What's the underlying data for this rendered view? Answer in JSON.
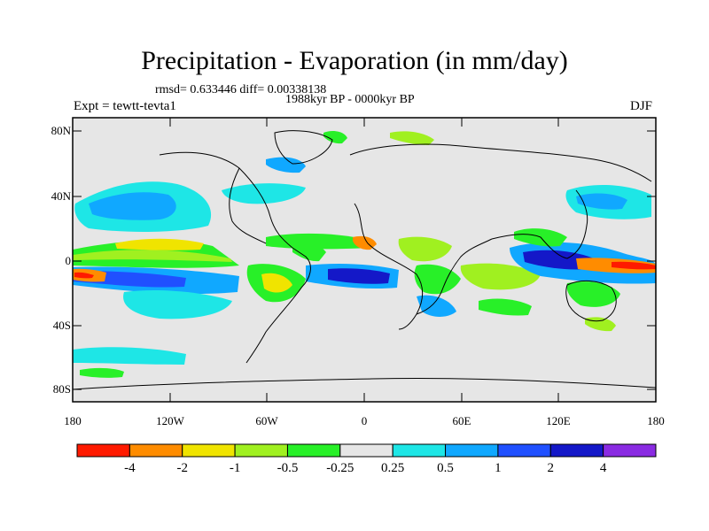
{
  "title": "Precipitation - Evaporation (in mm/day)",
  "stats_text": "rmsd= 0.633446 diff= 0.00338138",
  "period_text": "1988kyr BP - 0000kyr BP",
  "experiment_label": "Expt = tewtt-tevta1",
  "season_label": "DJF",
  "lat_labels": [
    "80N",
    "40N",
    "0",
    "40S",
    "80S"
  ],
  "lon_labels": [
    "180",
    "120W",
    "60W",
    "0",
    "60E",
    "120E",
    "180"
  ],
  "colorbar": {
    "labels": [
      "-4",
      "-2",
      "-1",
      "-0.5",
      "-0.25",
      "0.25",
      "0.5",
      "1",
      "2",
      "4"
    ],
    "colors": [
      "#ff1a00",
      "#ff8c00",
      "#f0e400",
      "#a0f020",
      "#28f028",
      "#e6e6e6",
      "#1ee6e6",
      "#10a8ff",
      "#2050ff",
      "#1418c8",
      "#8a2be2"
    ]
  },
  "palette": {
    "ocean_neutral": "#e6e6e6",
    "coast": "#000000"
  }
}
